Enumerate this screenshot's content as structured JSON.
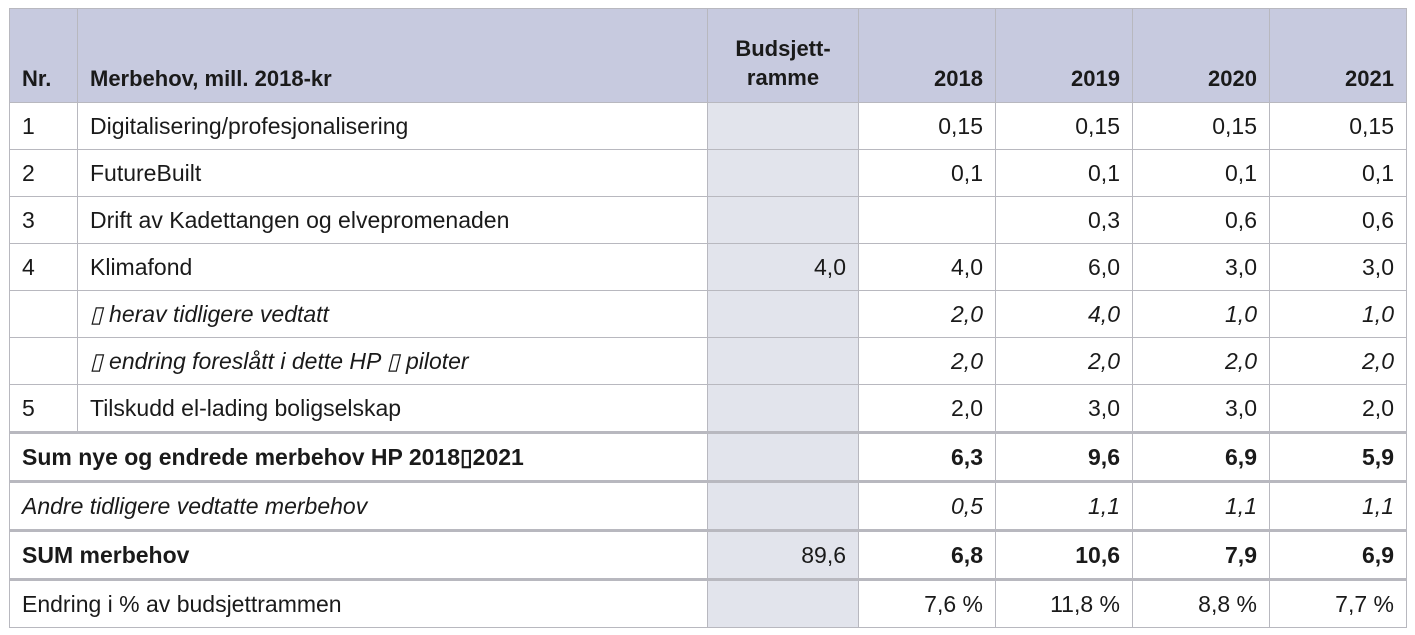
{
  "header": {
    "nr": "Nr.",
    "label": "Merbehov, mill. 2018-kr",
    "ramme_line1": "Budsjett-",
    "ramme_line2": "ramme",
    "years": [
      "2018",
      "2019",
      "2020",
      "2021"
    ]
  },
  "rows": [
    {
      "nr": "1",
      "label": "Digitalisering/profesjonalisering",
      "ramme": "",
      "v": [
        "0,15",
        "0,15",
        "0,15",
        "0,15"
      ]
    },
    {
      "nr": "2",
      "label": "FutureBuilt",
      "ramme": "",
      "v": [
        "0,1",
        "0,1",
        "0,1",
        "0,1"
      ]
    },
    {
      "nr": "3",
      "label": "Drift av Kadettangen og elvepromenaden",
      "ramme": "",
      "v": [
        "",
        "0,3",
        "0,6",
        "0,6"
      ]
    },
    {
      "nr": "4",
      "label": "Klimafond",
      "ramme": "4,0",
      "v": [
        "4,0",
        "6,0",
        "3,0",
        "3,0"
      ]
    },
    {
      "nr": "",
      "label": "▯ herav tidligere vedtatt",
      "ramme": "",
      "v": [
        "2,0",
        "4,0",
        "1,0",
        "1,0"
      ]
    },
    {
      "nr": "",
      "label": "▯ endring foreslått i dette HP ▯ piloter",
      "ramme": "",
      "v": [
        "2,0",
        "2,0",
        "2,0",
        "2,0"
      ]
    },
    {
      "nr": "5",
      "label": "Tilskudd el-lading boligselskap",
      "ramme": "",
      "v": [
        "2,0",
        "3,0",
        "3,0",
        "2,0"
      ]
    },
    {
      "label": "Sum nye og endrede merbehov HP 2018▯2021",
      "ramme": "",
      "v": [
        "6,3",
        "9,6",
        "6,9",
        "5,9"
      ]
    },
    {
      "label": "Andre tidligere vedtatte merbehov",
      "ramme": "",
      "v": [
        "0,5",
        "1,1",
        "1,1",
        "1,1"
      ]
    },
    {
      "label": "SUM merbehov",
      "ramme": "89,6",
      "v": [
        "6,8",
        "10,6",
        "7,9",
        "6,9"
      ]
    },
    {
      "label": "Endring i % av budsjettrammen",
      "ramme": "",
      "v": [
        "7,6 %",
        "11,8 %",
        "8,8 %",
        "7,7 %"
      ]
    }
  ]
}
